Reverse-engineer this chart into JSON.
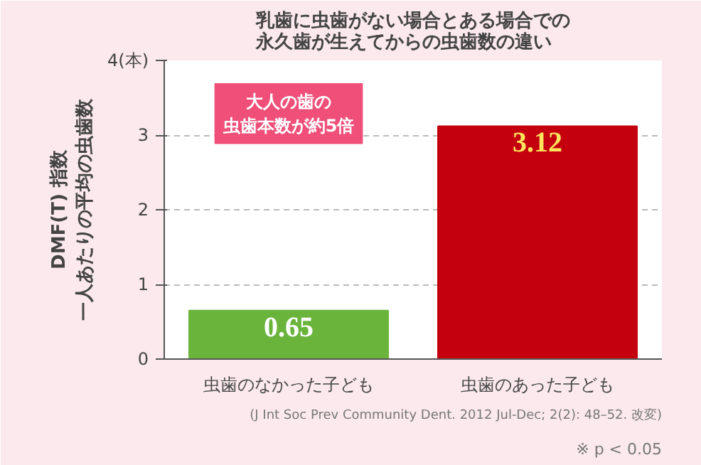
{
  "chart_data": {
    "type": "bar",
    "title": "乳歯に虫歯がない場合とある場合での永久歯が生えてからの虫歯数の違い",
    "ylabel": "DMF(T) 指数一人あたりの平均の虫歯数",
    "categories": [
      "虫歯のなかった子ども",
      "虫歯のあった子ども"
    ],
    "values": [
      0.65,
      3.12
    ],
    "colors": [
      "#6ab43c",
      "#c4000f"
    ],
    "ylim": [
      0,
      4
    ],
    "yticks": [
      0,
      1,
      2,
      3,
      {
        "value": 4,
        "label": "4(本)"
      }
    ],
    "grid": "y",
    "data_labels": true,
    "annotations": [
      "大人の歯の虫歯本数が約5倍",
      "※ p < 0.05",
      "(J Int Soc Prev Community Dent. 2012 Jul-Dec; 2(2): 48–52. 改変)"
    ]
  }
}
